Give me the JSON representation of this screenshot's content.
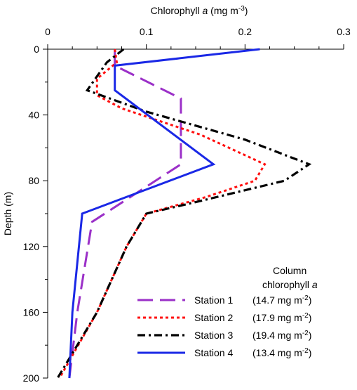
{
  "chart_data": {
    "type": "line",
    "orientation": "depth-profile",
    "xlabel": {
      "prefix": "Chlorophyll ",
      "italic": "a",
      "units_prefix": " (mg m",
      "units_sup": "-3",
      "units_suffix": ")"
    },
    "ylabel": "Depth (m)",
    "xlim": [
      0,
      0.3
    ],
    "ylim": [
      0,
      200
    ],
    "y_inverted": true,
    "x_axis_position": "top",
    "x_ticks": [
      {
        "value": 0,
        "label": "0"
      },
      {
        "value": 0.1,
        "label": "0.1"
      },
      {
        "value": 0.2,
        "label": "0.2"
      },
      {
        "value": 0.3,
        "label": "0.3"
      }
    ],
    "y_ticks": [
      {
        "value": 0,
        "label": "0"
      },
      {
        "value": 40,
        "label": "40"
      },
      {
        "value": 80,
        "label": "80"
      },
      {
        "value": 120,
        "label": "120"
      },
      {
        "value": 160,
        "label": "160"
      },
      {
        "value": 200,
        "label": "200"
      }
    ],
    "grid": false,
    "legend": {
      "placement": "bottom-right",
      "header_line1": "Column",
      "header_line2_prefix": "chlorophyll ",
      "header_line2_italic": "a"
    },
    "series": [
      {
        "name": "Station 1",
        "column_value_text": "(14.7 mg m",
        "column_value_sup": "-2",
        "column_value_close": ")",
        "color": "#9b30c8",
        "dash": "long-dash",
        "points": [
          {
            "x": 0.068,
            "y": 0
          },
          {
            "x": 0.068,
            "y": 10
          },
          {
            "x": 0.135,
            "y": 30
          },
          {
            "x": 0.135,
            "y": 70
          },
          {
            "x": 0.045,
            "y": 105
          },
          {
            "x": 0.03,
            "y": 160
          },
          {
            "x": 0.022,
            "y": 200
          }
        ]
      },
      {
        "name": "Station 2",
        "column_value_text": "(17.9 mg m",
        "column_value_sup": "-2",
        "column_value_close": ")",
        "color": "#ff1010",
        "dash": "dotted",
        "points": [
          {
            "x": 0.068,
            "y": 0
          },
          {
            "x": 0.07,
            "y": 8
          },
          {
            "x": 0.05,
            "y": 18
          },
          {
            "x": 0.05,
            "y": 28
          },
          {
            "x": 0.075,
            "y": 36
          },
          {
            "x": 0.155,
            "y": 52
          },
          {
            "x": 0.22,
            "y": 70
          },
          {
            "x": 0.21,
            "y": 80
          },
          {
            "x": 0.16,
            "y": 90
          },
          {
            "x": 0.1,
            "y": 100
          },
          {
            "x": 0.08,
            "y": 120
          },
          {
            "x": 0.05,
            "y": 160
          },
          {
            "x": 0.012,
            "y": 200
          }
        ]
      },
      {
        "name": "Station 3",
        "column_value_text": "(19.4 mg m",
        "column_value_sup": "-2",
        "column_value_close": ")",
        "color": "#000000",
        "dash": "dash-dot",
        "points": [
          {
            "x": 0.077,
            "y": 0
          },
          {
            "x": 0.06,
            "y": 8
          },
          {
            "x": 0.04,
            "y": 25
          },
          {
            "x": 0.1,
            "y": 38
          },
          {
            "x": 0.2,
            "y": 55
          },
          {
            "x": 0.265,
            "y": 70
          },
          {
            "x": 0.24,
            "y": 80
          },
          {
            "x": 0.15,
            "y": 93
          },
          {
            "x": 0.1,
            "y": 100
          },
          {
            "x": 0.08,
            "y": 120
          },
          {
            "x": 0.05,
            "y": 160
          },
          {
            "x": 0.01,
            "y": 200
          }
        ]
      },
      {
        "name": "Station 4",
        "column_value_text": "(13.4 mg m",
        "column_value_sup": "-2",
        "column_value_close": ")",
        "color": "#1a28e6",
        "dash": "solid",
        "points": [
          {
            "x": 0.215,
            "y": 0
          },
          {
            "x": 0.068,
            "y": 10
          },
          {
            "x": 0.068,
            "y": 25
          },
          {
            "x": 0.168,
            "y": 70
          },
          {
            "x": 0.035,
            "y": 100
          },
          {
            "x": 0.025,
            "y": 160
          },
          {
            "x": 0.022,
            "y": 200
          }
        ]
      }
    ]
  }
}
